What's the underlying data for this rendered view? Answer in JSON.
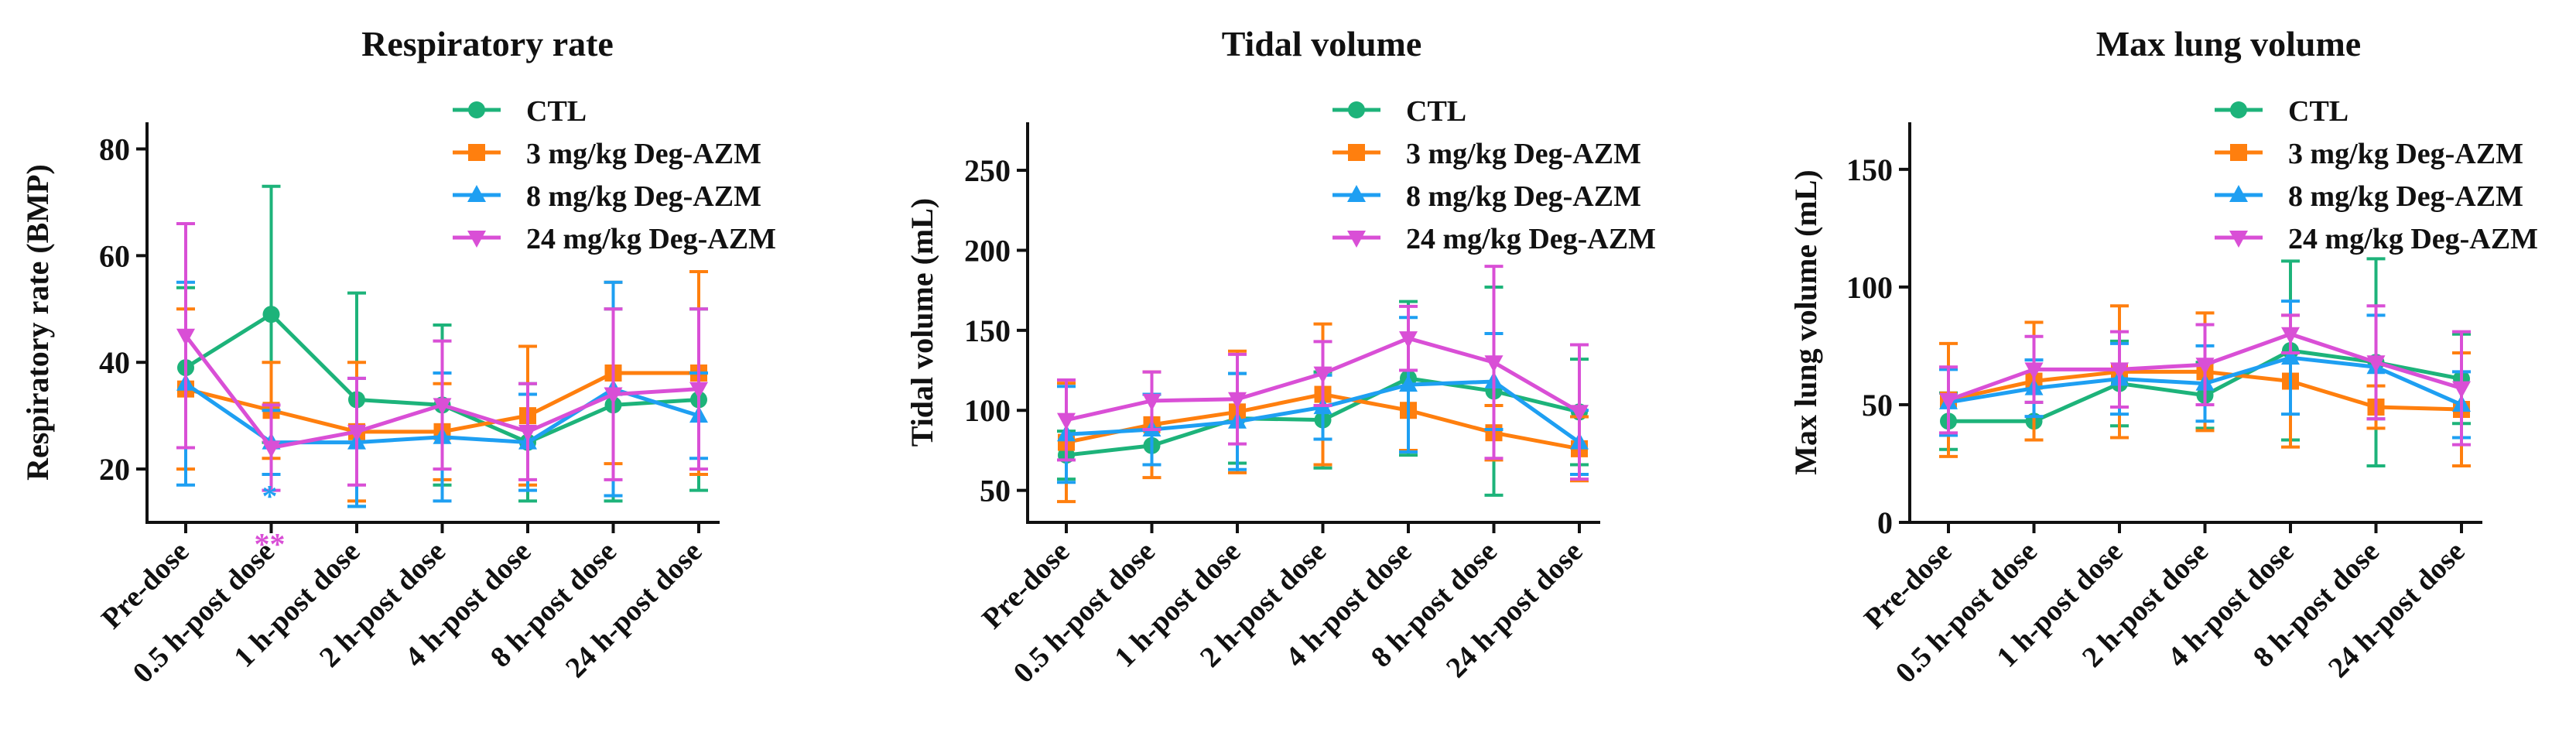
{
  "chart_data": [
    {
      "type": "line",
      "title": "Respiratory rate",
      "ylabel": "Respiratory rate (BMP)",
      "xlabel": "",
      "ylim": [
        10,
        85
      ],
      "yticks": [
        20,
        40,
        60,
        80
      ],
      "categories": [
        "Pre-dose",
        "0.5 h-post dose",
        "1 h-post dose",
        "2 h-post dose",
        "4 h-post dose",
        "8 h-post dose",
        "24 h-post dose"
      ],
      "series": [
        {
          "name": "CTL",
          "color": "#1db37a",
          "marker": "circle",
          "values": [
            39,
            49,
            33,
            32,
            25,
            32,
            33
          ],
          "err": [
            15,
            24,
            20,
            15,
            11,
            18,
            17
          ]
        },
        {
          "name": "3 mg/kg Deg-AZM",
          "color": "#ff7f0e",
          "marker": "square",
          "values": [
            35,
            31,
            27,
            27,
            30,
            38,
            38
          ],
          "err": [
            15,
            9,
            13,
            9,
            13,
            17,
            19
          ]
        },
        {
          "name": "8 mg/kg Deg-AZM",
          "color": "#1e9ff2",
          "marker": "triangle-up",
          "values": [
            36,
            25,
            25,
            26,
            25,
            35,
            30
          ],
          "err": [
            19,
            6,
            12,
            12,
            9,
            20,
            8
          ]
        },
        {
          "name": "24 mg/kg Deg-AZM",
          "color": "#d94fd6",
          "marker": "triangle-down",
          "values": [
            45,
            24,
            27,
            32,
            27,
            34,
            35
          ],
          "err": [
            21,
            8,
            10,
            12,
            9,
            16,
            15
          ]
        }
      ],
      "annotations": [
        {
          "text": "*",
          "category": "0.5 h-post dose",
          "y": 15,
          "color": "#1e9ff2"
        },
        {
          "text": "**",
          "category": "0.5 h-post dose",
          "y": 6,
          "color": "#d94fd6"
        }
      ]
    },
    {
      "type": "line",
      "title": "Tidal volume",
      "ylabel": "Tidal volume (mL)",
      "xlabel": "",
      "ylim": [
        30,
        280
      ],
      "yticks": [
        50,
        100,
        150,
        200,
        250
      ],
      "categories": [
        "Pre-dose",
        "0.5 h-post dose",
        "1 h-post dose",
        "2 h-post dose",
        "4 h-post dose",
        "8 h-post dose",
        "24 h-post dose"
      ],
      "series": [
        {
          "name": "CTL",
          "color": "#1db37a",
          "marker": "circle",
          "values": [
            72,
            78,
            95,
            94,
            120,
            112,
            99
          ],
          "err": [
            15,
            12,
            28,
            30,
            48,
            65,
            33
          ]
        },
        {
          "name": "3 mg/kg Deg-AZM",
          "color": "#ff7f0e",
          "marker": "square",
          "values": [
            80,
            91,
            99,
            110,
            100,
            86,
            76
          ],
          "err": [
            37,
            33,
            38,
            44,
            25,
            17,
            20
          ]
        },
        {
          "name": "8 mg/kg Deg-AZM",
          "color": "#1e9ff2",
          "marker": "triangle-up",
          "values": [
            85,
            88,
            93,
            102,
            116,
            118,
            80
          ],
          "err": [
            30,
            22,
            30,
            20,
            42,
            30,
            20
          ]
        },
        {
          "name": "24 mg/kg Deg-AZM",
          "color": "#d94fd6",
          "marker": "triangle-down",
          "values": [
            94,
            106,
            107,
            123,
            145,
            130,
            99
          ],
          "err": [
            25,
            18,
            28,
            20,
            20,
            60,
            42
          ]
        }
      ]
    },
    {
      "type": "line",
      "title": "Max lung volume",
      "ylabel": "Max lung volume (mL)",
      "xlabel": "",
      "ylim": [
        0,
        170
      ],
      "yticks": [
        0,
        50,
        100,
        150
      ],
      "categories": [
        "Pre-dose",
        "0.5 h-post dose",
        "1 h-post dose",
        "2 h-post dose",
        "4 h-post dose",
        "8 h-post dose",
        "24 h-post dose"
      ],
      "series": [
        {
          "name": "CTL",
          "color": "#1db37a",
          "marker": "circle",
          "values": [
            43,
            43,
            59,
            54,
            73,
            68,
            61
          ],
          "err": [
            12,
            8,
            18,
            14,
            38,
            44,
            19
          ]
        },
        {
          "name": "3 mg/kg Deg-AZM",
          "color": "#ff7f0e",
          "marker": "square",
          "values": [
            52,
            60,
            64,
            64,
            60,
            49,
            48
          ],
          "err": [
            24,
            25,
            28,
            25,
            28,
            9,
            24
          ]
        },
        {
          "name": "8 mg/kg Deg-AZM",
          "color": "#1e9ff2",
          "marker": "triangle-up",
          "values": [
            51,
            57,
            61,
            59,
            70,
            66,
            50
          ],
          "err": [
            14,
            12,
            15,
            16,
            24,
            22,
            14
          ]
        },
        {
          "name": "24 mg/kg Deg-AZM",
          "color": "#d94fd6",
          "marker": "triangle-down",
          "values": [
            52,
            65,
            65,
            67,
            80,
            68,
            57
          ],
          "err": [
            14,
            14,
            16,
            17,
            8,
            24,
            24
          ]
        }
      ]
    }
  ]
}
